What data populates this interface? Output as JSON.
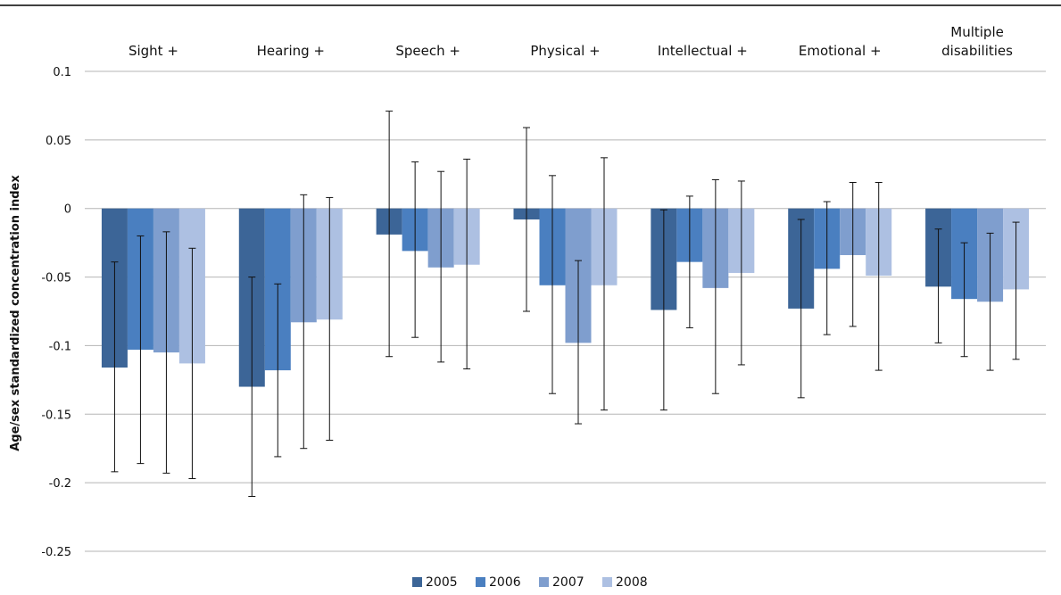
{
  "chart_data": {
    "type": "bar",
    "title": "",
    "xlabel": "",
    "ylabel": "Age/sex standardized concentration index",
    "ylim": [
      -0.25,
      0.1
    ],
    "yticks": [
      0.1,
      0.05,
      0,
      -0.05,
      -0.1,
      -0.15,
      -0.2,
      -0.25
    ],
    "ytick_labels": [
      "0.1",
      "0.05",
      "0",
      "-0.05",
      "-0.1",
      "-0.15",
      "-0.2",
      "-0.25"
    ],
    "grid": true,
    "legend_position": "bottom",
    "categories": [
      [
        "Sight +"
      ],
      [
        "Hearing +"
      ],
      [
        "Speech +"
      ],
      [
        "Physical +"
      ],
      [
        "Intellectual +"
      ],
      [
        "Emotional +"
      ],
      [
        "Multiple",
        "disabilities"
      ]
    ],
    "series": [
      {
        "name": "2005",
        "color": "#3c6597",
        "values": [
          -0.116,
          -0.13,
          -0.019,
          -0.008,
          -0.074,
          -0.073,
          -0.057
        ],
        "ci_low": [
          -0.192,
          -0.21,
          -0.108,
          -0.075,
          -0.147,
          -0.138,
          -0.098
        ],
        "ci_high": [
          -0.039,
          -0.05,
          0.071,
          0.059,
          -0.001,
          -0.008,
          -0.015
        ]
      },
      {
        "name": "2006",
        "color": "#4a7fc0",
        "values": [
          -0.103,
          -0.118,
          -0.031,
          -0.056,
          -0.039,
          -0.044,
          -0.066
        ],
        "ci_low": [
          -0.186,
          -0.181,
          -0.094,
          -0.135,
          -0.087,
          -0.092,
          -0.108
        ],
        "ci_high": [
          -0.02,
          -0.055,
          0.034,
          0.024,
          0.009,
          0.005,
          -0.025
        ]
      },
      {
        "name": "2007",
        "color": "#7f9ece",
        "values": [
          -0.105,
          -0.083,
          -0.043,
          -0.098,
          -0.058,
          -0.034,
          -0.068
        ],
        "ci_low": [
          -0.193,
          -0.175,
          -0.112,
          -0.157,
          -0.135,
          -0.086,
          -0.118
        ],
        "ci_high": [
          -0.017,
          0.01,
          0.027,
          -0.038,
          0.021,
          0.019,
          -0.018
        ]
      },
      {
        "name": "2008",
        "color": "#adc0e2",
        "values": [
          -0.113,
          -0.081,
          -0.041,
          -0.056,
          -0.047,
          -0.049,
          -0.059
        ],
        "ci_low": [
          -0.197,
          -0.169,
          -0.117,
          -0.147,
          -0.114,
          -0.118,
          -0.11
        ],
        "ci_high": [
          -0.029,
          0.008,
          0.036,
          0.037,
          0.02,
          0.019,
          -0.01
        ]
      }
    ]
  }
}
